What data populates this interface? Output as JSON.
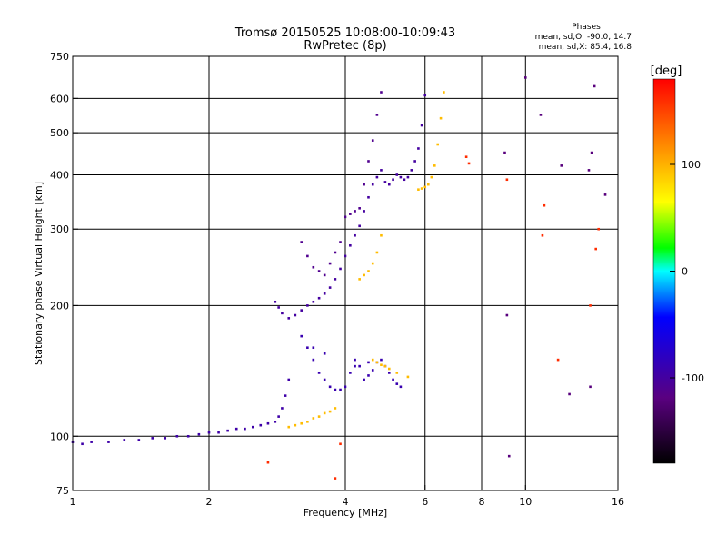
{
  "chart_data": {
    "type": "scatter",
    "title": "Tromsø 20150525 10:08:00-10:09:43",
    "subtitle": "RwPretec (8p)",
    "xlabel": "Frequency [MHz]",
    "ylabel": "Stationary phase Virtual Height [km]",
    "x_scale": "log",
    "y_scale": "log",
    "xlim": [
      1,
      16
    ],
    "ylim": [
      75,
      750
    ],
    "grid": true,
    "x_ticks": [
      1,
      2,
      4,
      6,
      8,
      10,
      16
    ],
    "y_ticks": [
      75,
      100,
      200,
      300,
      400,
      500,
      600,
      750
    ],
    "stats": {
      "heading": "Phases",
      "line_o": "mean, sd,O: -90.0, 14.7",
      "line_x": "mean, sd,X: 85.4, 16.8"
    },
    "colorbar": {
      "label": "[deg]",
      "range": [
        -180,
        180
      ],
      "ticks": [
        100,
        0,
        -100
      ]
    },
    "series": [
      {
        "color_phase": -95,
        "points": [
          [
            1.0,
            97
          ],
          [
            1.05,
            96
          ],
          [
            1.1,
            97
          ],
          [
            1.2,
            97
          ],
          [
            1.3,
            98
          ],
          [
            1.4,
            98
          ],
          [
            1.5,
            99
          ],
          [
            1.6,
            99
          ],
          [
            1.7,
            100
          ],
          [
            1.8,
            100
          ],
          [
            1.9,
            101
          ],
          [
            2.0,
            102
          ],
          [
            2.1,
            102
          ],
          [
            2.2,
            103
          ],
          [
            2.3,
            104
          ],
          [
            2.4,
            104
          ],
          [
            2.5,
            105
          ],
          [
            2.6,
            106
          ],
          [
            2.7,
            107
          ],
          [
            2.8,
            108
          ],
          [
            2.85,
            111
          ],
          [
            2.9,
            116
          ],
          [
            2.95,
            124
          ],
          [
            3.0,
            135
          ]
        ]
      },
      {
        "color_phase": -100,
        "points": [
          [
            2.8,
            204
          ],
          [
            2.85,
            198
          ],
          [
            2.9,
            192
          ],
          [
            3.0,
            187
          ],
          [
            3.1,
            190
          ],
          [
            3.2,
            195
          ],
          [
            3.3,
            200
          ],
          [
            3.4,
            204
          ],
          [
            3.5,
            208
          ],
          [
            3.6,
            213
          ],
          [
            3.7,
            220
          ],
          [
            3.8,
            230
          ],
          [
            3.9,
            243
          ],
          [
            4.0,
            260
          ],
          [
            4.1,
            275
          ],
          [
            4.2,
            290
          ],
          [
            4.3,
            305
          ],
          [
            4.4,
            330
          ],
          [
            4.5,
            355
          ],
          [
            4.6,
            380
          ],
          [
            4.7,
            395
          ],
          [
            4.8,
            410
          ],
          [
            4.9,
            385
          ],
          [
            5.0,
            380
          ],
          [
            5.1,
            390
          ],
          [
            5.2,
            400
          ],
          [
            5.3,
            395
          ],
          [
            5.4,
            390
          ],
          [
            5.5,
            395
          ],
          [
            5.6,
            410
          ],
          [
            5.7,
            430
          ],
          [
            5.8,
            460
          ],
          [
            5.9,
            520
          ],
          [
            6.0,
            610
          ]
        ]
      },
      {
        "color_phase": -110,
        "points": [
          [
            3.2,
            280
          ],
          [
            3.3,
            260
          ],
          [
            3.4,
            245
          ],
          [
            3.5,
            240
          ],
          [
            3.6,
            235
          ],
          [
            3.7,
            250
          ],
          [
            3.8,
            265
          ],
          [
            3.9,
            280
          ],
          [
            4.0,
            320
          ],
          [
            4.1,
            325
          ],
          [
            4.2,
            330
          ],
          [
            4.3,
            335
          ],
          [
            4.4,
            380
          ],
          [
            4.5,
            430
          ],
          [
            4.6,
            480
          ],
          [
            4.7,
            550
          ],
          [
            4.8,
            620
          ]
        ]
      },
      {
        "color_phase": -90,
        "points": [
          [
            3.2,
            170
          ],
          [
            3.3,
            160
          ],
          [
            3.4,
            150
          ],
          [
            3.5,
            140
          ],
          [
            3.6,
            135
          ],
          [
            3.7,
            130
          ],
          [
            3.8,
            128
          ],
          [
            3.9,
            128
          ],
          [
            4.0,
            130
          ],
          [
            4.1,
            140
          ],
          [
            4.2,
            150
          ],
          [
            4.3,
            145
          ],
          [
            4.4,
            135
          ],
          [
            4.5,
            138
          ],
          [
            4.6,
            142
          ],
          [
            4.7,
            148
          ],
          [
            4.8,
            150
          ],
          [
            4.9,
            145
          ],
          [
            5.0,
            140
          ],
          [
            5.1,
            135
          ],
          [
            5.2,
            132
          ],
          [
            5.3,
            130
          ],
          [
            3.4,
            160
          ],
          [
            3.6,
            155
          ],
          [
            4.2,
            145
          ],
          [
            4.5,
            148
          ]
        ]
      },
      {
        "color_phase": 95,
        "points": [
          [
            3.0,
            105
          ],
          [
            3.1,
            106
          ],
          [
            3.2,
            107
          ],
          [
            3.3,
            108
          ],
          [
            3.4,
            110
          ],
          [
            3.5,
            111
          ],
          [
            3.6,
            113
          ],
          [
            3.7,
            114
          ],
          [
            3.8,
            116
          ],
          [
            4.3,
            230
          ],
          [
            4.4,
            235
          ],
          [
            4.5,
            240
          ],
          [
            4.6,
            250
          ],
          [
            4.7,
            265
          ],
          [
            4.8,
            290
          ],
          [
            4.6,
            150
          ],
          [
            4.7,
            148
          ],
          [
            4.8,
            146
          ],
          [
            4.9,
            145
          ],
          [
            5.0,
            143
          ],
          [
            5.2,
            140
          ],
          [
            5.5,
            137
          ],
          [
            5.8,
            370
          ],
          [
            5.9,
            372
          ],
          [
            6.0,
            375
          ],
          [
            6.1,
            380
          ],
          [
            6.2,
            395
          ],
          [
            6.3,
            420
          ],
          [
            6.4,
            470
          ],
          [
            6.5,
            540
          ],
          [
            6.6,
            620
          ]
        ]
      },
      {
        "color_phase": -120,
        "points": [
          [
            9.0,
            450
          ],
          [
            9.1,
            190
          ],
          [
            9.2,
            90
          ],
          [
            10.0,
            670
          ],
          [
            10.8,
            550
          ],
          [
            12.0,
            420
          ],
          [
            12.5,
            125
          ],
          [
            14.0,
            450
          ],
          [
            14.2,
            640
          ],
          [
            15.0,
            360
          ],
          [
            13.9,
            130
          ],
          [
            13.8,
            410
          ]
        ]
      },
      {
        "color_phase": 160,
        "points": [
          [
            2.7,
            87
          ],
          [
            3.8,
            80
          ],
          [
            3.9,
            96
          ],
          [
            9.1,
            390
          ],
          [
            10.9,
            290
          ],
          [
            11.0,
            340
          ],
          [
            13.9,
            200
          ],
          [
            14.3,
            270
          ],
          [
            14.5,
            300
          ],
          [
            7.4,
            440
          ],
          [
            7.5,
            425
          ],
          [
            11.8,
            150
          ]
        ]
      }
    ]
  }
}
